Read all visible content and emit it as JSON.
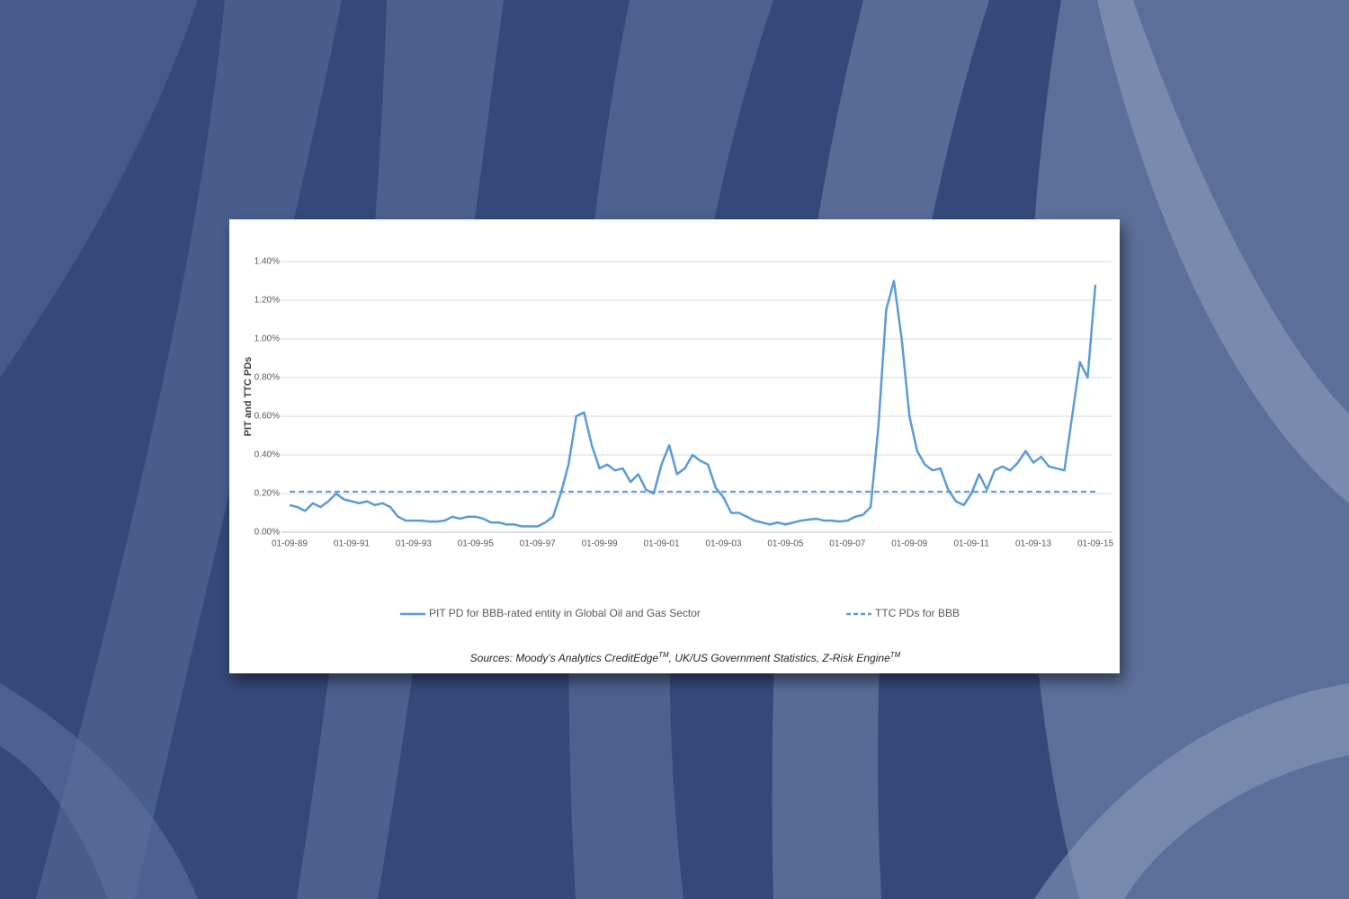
{
  "chart_data": {
    "type": "line",
    "y_label": "PIT and TTC  PDs",
    "source": [
      "Sources: Moody’s Analytics CreditEdge",
      "TM",
      ", UK/US Government Statistics, Z-Risk Engine",
      "TM"
    ],
    "categories": [
      "01-09-89",
      null,
      null,
      null,
      null,
      null,
      null,
      null,
      "01-09-91",
      null,
      null,
      null,
      null,
      null,
      null,
      null,
      "01-09-93",
      null,
      null,
      null,
      null,
      null,
      null,
      null,
      "01-09-95",
      null,
      null,
      null,
      null,
      null,
      null,
      null,
      "01-09-97",
      null,
      null,
      null,
      null,
      null,
      null,
      null,
      "01-09-99",
      null,
      null,
      null,
      null,
      null,
      null,
      null,
      "01-09-01",
      null,
      null,
      null,
      null,
      null,
      null,
      null,
      "01-09-03",
      null,
      null,
      null,
      null,
      null,
      null,
      null,
      "01-09-05",
      null,
      null,
      null,
      null,
      null,
      null,
      null,
      "01-09-07",
      null,
      null,
      null,
      null,
      null,
      null,
      null,
      "01-09-09",
      null,
      null,
      null,
      null,
      null,
      null,
      null,
      "01-09-11",
      null,
      null,
      null,
      null,
      null,
      null,
      null,
      "01-09-13",
      null,
      null,
      null,
      null,
      null,
      null,
      null,
      "01-09-15"
    ],
    "series": [
      {
        "name": "PIT PD for BBB-rated entity in Global Oil and Gas Sector",
        "color": "#5b9bd5",
        "dash": false,
        "values": [
          0.14,
          0.13,
          0.11,
          0.15,
          0.13,
          0.16,
          0.2,
          0.17,
          0.16,
          0.15,
          0.16,
          0.14,
          0.15,
          0.13,
          0.08,
          0.06,
          0.06,
          0.06,
          0.055,
          0.055,
          0.06,
          0.08,
          0.07,
          0.08,
          0.08,
          0.07,
          0.05,
          0.05,
          0.04,
          0.04,
          0.03,
          0.03,
          0.03,
          0.05,
          0.08,
          0.2,
          0.35,
          0.6,
          0.62,
          0.45,
          0.33,
          0.35,
          0.32,
          0.33,
          0.26,
          0.3,
          0.22,
          0.2,
          0.35,
          0.45,
          0.3,
          0.33,
          0.4,
          0.37,
          0.35,
          0.23,
          0.18,
          0.1,
          0.1,
          0.08,
          0.06,
          0.05,
          0.04,
          0.05,
          0.04,
          0.05,
          0.06,
          0.065,
          0.07,
          0.06,
          0.06,
          0.055,
          0.06,
          0.08,
          0.09,
          0.13,
          0.55,
          1.15,
          1.3,
          1.0,
          0.6,
          0.42,
          0.35,
          0.32,
          0.33,
          0.22,
          0.16,
          0.14,
          0.2,
          0.3,
          0.22,
          0.32,
          0.34,
          0.32,
          0.36,
          0.42,
          0.36,
          0.39,
          0.34,
          0.33,
          0.32,
          0.6,
          0.88,
          0.8,
          1.28
        ]
      },
      {
        "name": "TTC PDs for BBB",
        "color": "#5b9bd5",
        "dash": true,
        "values": [
          0.21,
          0.21,
          0.21,
          0.21,
          0.21,
          0.21,
          0.21,
          0.21,
          0.21,
          0.21,
          0.21,
          0.21,
          0.21,
          0.21,
          0.21,
          0.21,
          0.21,
          0.21,
          0.21,
          0.21,
          0.21,
          0.21,
          0.21,
          0.21,
          0.21,
          0.21,
          0.21,
          0.21,
          0.21,
          0.21,
          0.21,
          0.21,
          0.21,
          0.21,
          0.21,
          0.21,
          0.21,
          0.21,
          0.21,
          0.21,
          0.21,
          0.21,
          0.21,
          0.21,
          0.21,
          0.21,
          0.21,
          0.21,
          0.21,
          0.21,
          0.21,
          0.21,
          0.21,
          0.21,
          0.21,
          0.21,
          0.21,
          0.21,
          0.21,
          0.21,
          0.21,
          0.21,
          0.21,
          0.21,
          0.21,
          0.21,
          0.21,
          0.21,
          0.21,
          0.21,
          0.21,
          0.21,
          0.21,
          0.21,
          0.21,
          0.21,
          0.21,
          0.21,
          0.21,
          0.21,
          0.21,
          0.21,
          0.21,
          0.21,
          0.21,
          0.21,
          0.21,
          0.21,
          0.21,
          0.21,
          0.21,
          0.21,
          0.21,
          0.21,
          0.21,
          0.21,
          0.21,
          0.21,
          0.21,
          0.21,
          0.21,
          0.21,
          0.21,
          0.21,
          0.21
        ]
      }
    ],
    "ylim": [
      0,
      1.4
    ],
    "yticks": [
      {
        "value": 0,
        "label": "0.00%"
      },
      {
        "value": 0.2,
        "label": "0.20%"
      },
      {
        "value": 0.4,
        "label": "0.40%"
      },
      {
        "value": 0.6,
        "label": "0.60%"
      },
      {
        "value": 0.8,
        "label": "0.80%"
      },
      {
        "value": 1.0,
        "label": "1.00%"
      },
      {
        "value": 1.2,
        "label": "1.20%"
      },
      {
        "value": 1.4,
        "label": "1.40%"
      }
    ],
    "grid": true,
    "legend": "bottom"
  }
}
